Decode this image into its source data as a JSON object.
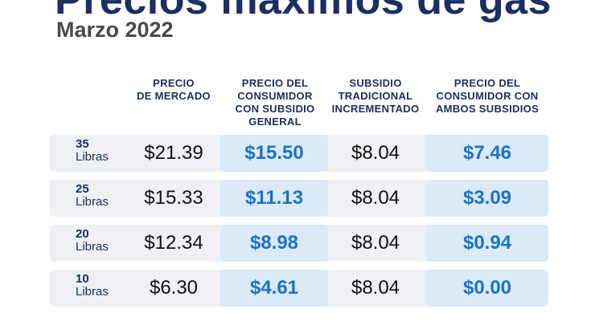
{
  "title": "Precios máximos de gas",
  "subtitle": "Marzo 2022",
  "headers": {
    "market_price": [
      "PRECIO",
      "DE MERCADO"
    ],
    "consumer_general": [
      "PRECIO DEL",
      "CONSUMIDOR",
      "CON SUBSIDIO",
      "GENERAL"
    ],
    "traditional_subsidy": [
      "SUBSIDIO",
      "TRADICIONAL",
      "INCREMENTADO"
    ],
    "consumer_both": [
      "PRECIO DEL",
      "CONSUMIDOR CON",
      "AMBOS SUBSIDIOS"
    ]
  },
  "colors": {
    "navy": "#1d2e63",
    "blue": "#1a73c8",
    "row_bg": "#eef0f3",
    "highlight_bg": "#dce9f6"
  },
  "rows": [
    {
      "weight": "35",
      "unit": "Libras",
      "market": "$21.39",
      "consumer_general": "$15.50",
      "subsidy": "$8.04",
      "consumer_both": "$7.46"
    },
    {
      "weight": "25",
      "unit": "Libras",
      "market": "$15.33",
      "consumer_general": "$11.13",
      "subsidy": "$8.04",
      "consumer_both": "$3.09"
    },
    {
      "weight": "20",
      "unit": "Libras",
      "market": "$12.34",
      "consumer_general": "$8.98",
      "subsidy": "$8.04",
      "consumer_both": "$0.94"
    },
    {
      "weight": "10",
      "unit": "Libras",
      "market": "$6.30",
      "consumer_general": "$4.61",
      "subsidy": "$8.04",
      "consumer_both": "$0.00"
    }
  ]
}
